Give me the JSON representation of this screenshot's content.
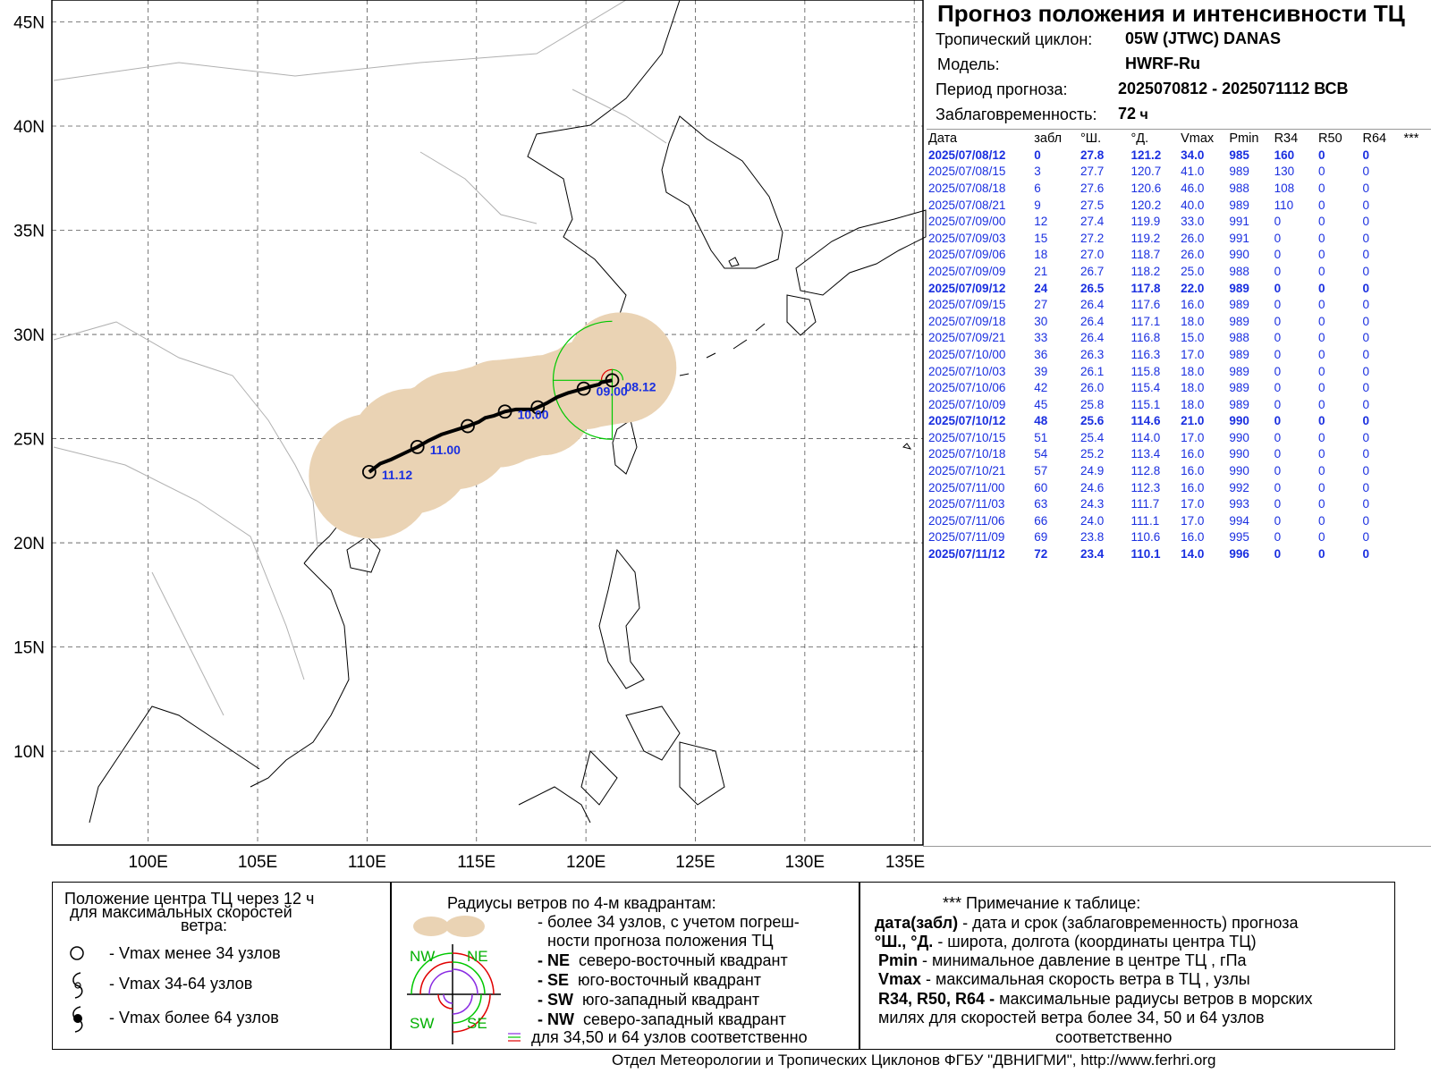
{
  "header": {
    "title": "Прогноз положения и интенсивности ТЦ",
    "cyclone_label": "Тропический циклон:",
    "cyclone_value": "05W (JTWC)  DANAS",
    "model_label": "Модель:",
    "model_value": "HWRF-Ru",
    "period_label": "Период прогноза:",
    "period_value": "2025070812 - 2025071112 ВСВ",
    "lead_label": "Заблаговременность:",
    "lead_value": "72",
    "lead_unit": "ч"
  },
  "table": {
    "columns": [
      "Дата",
      "забл",
      "°Ш.",
      "°Д.",
      "Vmax",
      "Pmin",
      "R34",
      "R50",
      "R64",
      "***"
    ],
    "rows": [
      {
        "bold": true,
        "cells": [
          "2025/07/08/12",
          "0",
          "27.8",
          "121.2",
          "34.0",
          "985",
          "160",
          "0",
          "0"
        ]
      },
      {
        "bold": false,
        "cells": [
          "2025/07/08/15",
          "3",
          "27.7",
          "120.7",
          "41.0",
          "989",
          "130",
          "0",
          "0"
        ]
      },
      {
        "bold": false,
        "cells": [
          "2025/07/08/18",
          "6",
          "27.6",
          "120.6",
          "46.0",
          "988",
          "108",
          "0",
          "0"
        ]
      },
      {
        "bold": false,
        "cells": [
          "2025/07/08/21",
          "9",
          "27.5",
          "120.2",
          "40.0",
          "989",
          "110",
          "0",
          "0"
        ]
      },
      {
        "bold": false,
        "cells": [
          "2025/07/09/00",
          "12",
          "27.4",
          "119.9",
          "33.0",
          "991",
          "0",
          "0",
          "0"
        ]
      },
      {
        "bold": false,
        "cells": [
          "2025/07/09/03",
          "15",
          "27.2",
          "119.2",
          "26.0",
          "991",
          "0",
          "0",
          "0"
        ]
      },
      {
        "bold": false,
        "cells": [
          "2025/07/09/06",
          "18",
          "27.0",
          "118.7",
          "26.0",
          "990",
          "0",
          "0",
          "0"
        ]
      },
      {
        "bold": false,
        "cells": [
          "2025/07/09/09",
          "21",
          "26.7",
          "118.2",
          "25.0",
          "988",
          "0",
          "0",
          "0"
        ]
      },
      {
        "bold": true,
        "cells": [
          "2025/07/09/12",
          "24",
          "26.5",
          "117.8",
          "22.0",
          "989",
          "0",
          "0",
          "0"
        ]
      },
      {
        "bold": false,
        "cells": [
          "2025/07/09/15",
          "27",
          "26.4",
          "117.6",
          "16.0",
          "989",
          "0",
          "0",
          "0"
        ]
      },
      {
        "bold": false,
        "cells": [
          "2025/07/09/18",
          "30",
          "26.4",
          "117.1",
          "18.0",
          "989",
          "0",
          "0",
          "0"
        ]
      },
      {
        "bold": false,
        "cells": [
          "2025/07/09/21",
          "33",
          "26.4",
          "116.8",
          "15.0",
          "988",
          "0",
          "0",
          "0"
        ]
      },
      {
        "bold": false,
        "cells": [
          "2025/07/10/00",
          "36",
          "26.3",
          "116.3",
          "17.0",
          "989",
          "0",
          "0",
          "0"
        ]
      },
      {
        "bold": false,
        "cells": [
          "2025/07/10/03",
          "39",
          "26.1",
          "115.8",
          "18.0",
          "989",
          "0",
          "0",
          "0"
        ]
      },
      {
        "bold": false,
        "cells": [
          "2025/07/10/06",
          "42",
          "26.0",
          "115.4",
          "18.0",
          "989",
          "0",
          "0",
          "0"
        ]
      },
      {
        "bold": false,
        "cells": [
          "2025/07/10/09",
          "45",
          "25.8",
          "115.1",
          "18.0",
          "989",
          "0",
          "0",
          "0"
        ]
      },
      {
        "bold": true,
        "cells": [
          "2025/07/10/12",
          "48",
          "25.6",
          "114.6",
          "21.0",
          "990",
          "0",
          "0",
          "0"
        ]
      },
      {
        "bold": false,
        "cells": [
          "2025/07/10/15",
          "51",
          "25.4",
          "114.0",
          "17.0",
          "990",
          "0",
          "0",
          "0"
        ]
      },
      {
        "bold": false,
        "cells": [
          "2025/07/10/18",
          "54",
          "25.2",
          "113.4",
          "16.0",
          "990",
          "0",
          "0",
          "0"
        ]
      },
      {
        "bold": false,
        "cells": [
          "2025/07/10/21",
          "57",
          "24.9",
          "112.8",
          "16.0",
          "990",
          "0",
          "0",
          "0"
        ]
      },
      {
        "bold": false,
        "cells": [
          "2025/07/11/00",
          "60",
          "24.6",
          "112.3",
          "16.0",
          "992",
          "0",
          "0",
          "0"
        ]
      },
      {
        "bold": false,
        "cells": [
          "2025/07/11/03",
          "63",
          "24.3",
          "111.7",
          "17.0",
          "993",
          "0",
          "0",
          "0"
        ]
      },
      {
        "bold": false,
        "cells": [
          "2025/07/11/06",
          "66",
          "24.0",
          "111.1",
          "17.0",
          "994",
          "0",
          "0",
          "0"
        ]
      },
      {
        "bold": false,
        "cells": [
          "2025/07/11/09",
          "69",
          "23.8",
          "110.6",
          "16.0",
          "995",
          "0",
          "0",
          "0"
        ]
      },
      {
        "bold": true,
        "cells": [
          "2025/07/11/12",
          "72",
          "23.4",
          "110.1",
          "14.0",
          "996",
          "0",
          "0",
          "0"
        ]
      }
    ]
  },
  "map": {
    "lat_labels": [
      "45N",
      "40N",
      "35N",
      "30N",
      "25N",
      "20N",
      "15N",
      "10N"
    ],
    "lat_values": [
      45,
      40,
      35,
      30,
      25,
      20,
      15,
      10
    ],
    "lon_labels": [
      "100E",
      "105E",
      "110E",
      "115E",
      "120E",
      "125E",
      "130E",
      "135E"
    ],
    "lon_values": [
      100,
      105,
      110,
      115,
      120,
      125,
      130,
      135
    ],
    "track_labels": [
      {
        "text": "08.12",
        "lon": 121.2,
        "lat": 27.8
      },
      {
        "text": "09.00",
        "lon": 119.9,
        "lat": 27.4
      },
      {
        "text": "10.00",
        "lon": 116.3,
        "lat": 26.3
      },
      {
        "text": "11.00",
        "lon": 112.3,
        "lat": 24.6
      },
      {
        "text": "11.12",
        "lon": 110.1,
        "lat": 23.4
      }
    ],
    "track_points": [
      {
        "lon": 121.2,
        "lat": 27.8
      },
      {
        "lon": 120.7,
        "lat": 27.7
      },
      {
        "lon": 120.6,
        "lat": 27.6
      },
      {
        "lon": 120.2,
        "lat": 27.5
      },
      {
        "lon": 119.9,
        "lat": 27.4
      },
      {
        "lon": 119.2,
        "lat": 27.2
      },
      {
        "lon": 118.7,
        "lat": 27.0
      },
      {
        "lon": 118.2,
        "lat": 26.7
      },
      {
        "lon": 117.8,
        "lat": 26.5
      },
      {
        "lon": 117.6,
        "lat": 26.4
      },
      {
        "lon": 117.1,
        "lat": 26.4
      },
      {
        "lon": 116.8,
        "lat": 26.4
      },
      {
        "lon": 116.3,
        "lat": 26.3
      },
      {
        "lon": 115.8,
        "lat": 26.1
      },
      {
        "lon": 115.4,
        "lat": 26.0
      },
      {
        "lon": 115.1,
        "lat": 25.8
      },
      {
        "lon": 114.6,
        "lat": 25.6
      },
      {
        "lon": 114.0,
        "lat": 25.4
      },
      {
        "lon": 113.4,
        "lat": 25.2
      },
      {
        "lon": 112.8,
        "lat": 24.9
      },
      {
        "lon": 112.3,
        "lat": 24.6
      },
      {
        "lon": 111.7,
        "lat": 24.3
      },
      {
        "lon": 111.1,
        "lat": 24.0
      },
      {
        "lon": 110.6,
        "lat": 23.8
      },
      {
        "lon": 110.1,
        "lat": 23.4
      }
    ],
    "circle_points": [
      {
        "lon": 121.2,
        "lat": 27.8
      },
      {
        "lon": 119.9,
        "lat": 27.4
      },
      {
        "lon": 117.8,
        "lat": 26.5
      },
      {
        "lon": 116.3,
        "lat": 26.3
      },
      {
        "lon": 114.6,
        "lat": 25.6
      },
      {
        "lon": 112.3,
        "lat": 24.6
      },
      {
        "lon": 110.1,
        "lat": 23.4
      }
    ]
  },
  "legend": {
    "left_title": "Положение центра ТЦ через 12 ч для максимальных скоростей ветра:",
    "left_title_1": "Положение центра ТЦ через 12 ч",
    "left_title_2": "для максимальных скоростей",
    "left_title_3": "ветра:",
    "item1": "- Vmax  менее 34 узлов",
    "item2": "- Vmax  34-64 узлов",
    "item3": "- Vmax  более 64 узлов",
    "mid_title": "Радиусы ветров по 4-м квадрантам:",
    "mid_1a": "- более 34 узлов, с учетом погреш-",
    "mid_1b": "ности прогноза положения ТЦ",
    "ne_code": "- NE",
    "ne_text": "северо-восточный квадрант",
    "se_code": "- SE",
    "se_text": "юго-восточный квадрант",
    "sw_code": "- SW",
    "sw_text": "юго-западный квадрант",
    "nw_code": "- NW",
    "nw_text": "северо-западный квадрант",
    "mid_last": "для 34,50 и 64 узлов соответственно",
    "q_nw": "NW",
    "q_ne": "NE",
    "q_sw": "SW",
    "q_se": "SE",
    "right_title": "*** Примечание к таблице:",
    "r1_b": "дата(забл)",
    "r1": " - дата и срок (заблаговременность) прогноза",
    "r2_b": "°Ш., °Д.",
    "r2": " - широта, долгота   (координаты центра ТЦ)",
    "r3_b": "Pmin",
    "r3": "  - минимальное давление в центре ТЦ , гПа",
    "r4_b": "Vmax",
    "r4": "   -  максимальная скорость ветра в ТЦ , узлы",
    "r5_b": "R34, R50, R64 -",
    "r5": " максимальные радиусы ветров в морских",
    "r6": "милях для скоростей ветра более 34, 50 и 64 узлов",
    "r7": "соответственно"
  },
  "footer": "Отдел Метеорологии и Тропических Циклонов ФГБУ \"ДВНИГМИ\",  http://www.ferhri.org",
  "colors": {
    "uncertainty": "#ead3b4",
    "track": "#000000",
    "labels": "#1a2fe0",
    "r34": "#00c800",
    "ne_sector": "#e00000",
    "purple": "#8a2be2"
  }
}
